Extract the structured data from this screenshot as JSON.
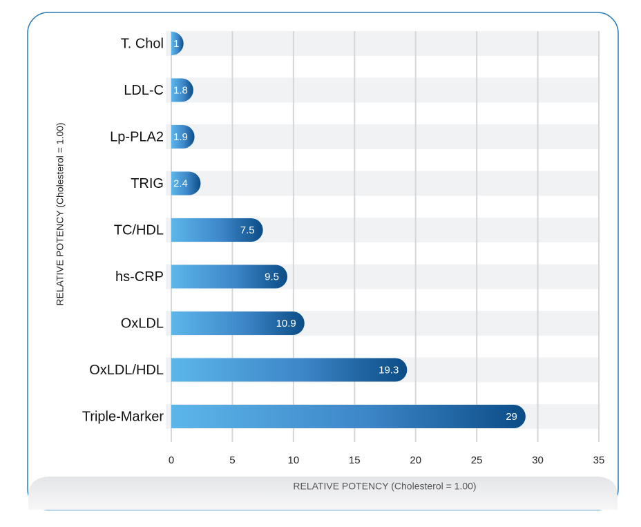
{
  "chart_data": {
    "type": "bar",
    "orientation": "horizontal",
    "x_label": "RELATIVE POTENCY (Cholesterol = 1.00)",
    "y_label": "RELATIVE POTENCY (Cholesterol = 1.00)",
    "categories": [
      "T. Chol",
      "LDL-C",
      "Lp-PLA2",
      "TRIG",
      "TC/HDL",
      "hs-CRP",
      "OxLDL",
      "OxLDL/HDL",
      "Triple-Marker"
    ],
    "values": [
      1,
      1.8,
      1.9,
      2.4,
      7.5,
      9.5,
      10.9,
      19.3,
      29
    ],
    "color": "#1a74b8",
    "xlim": [
      0,
      35
    ],
    "xticks": [
      0,
      5,
      10,
      15,
      20,
      25,
      30,
      35
    ],
    "grid": true
  }
}
